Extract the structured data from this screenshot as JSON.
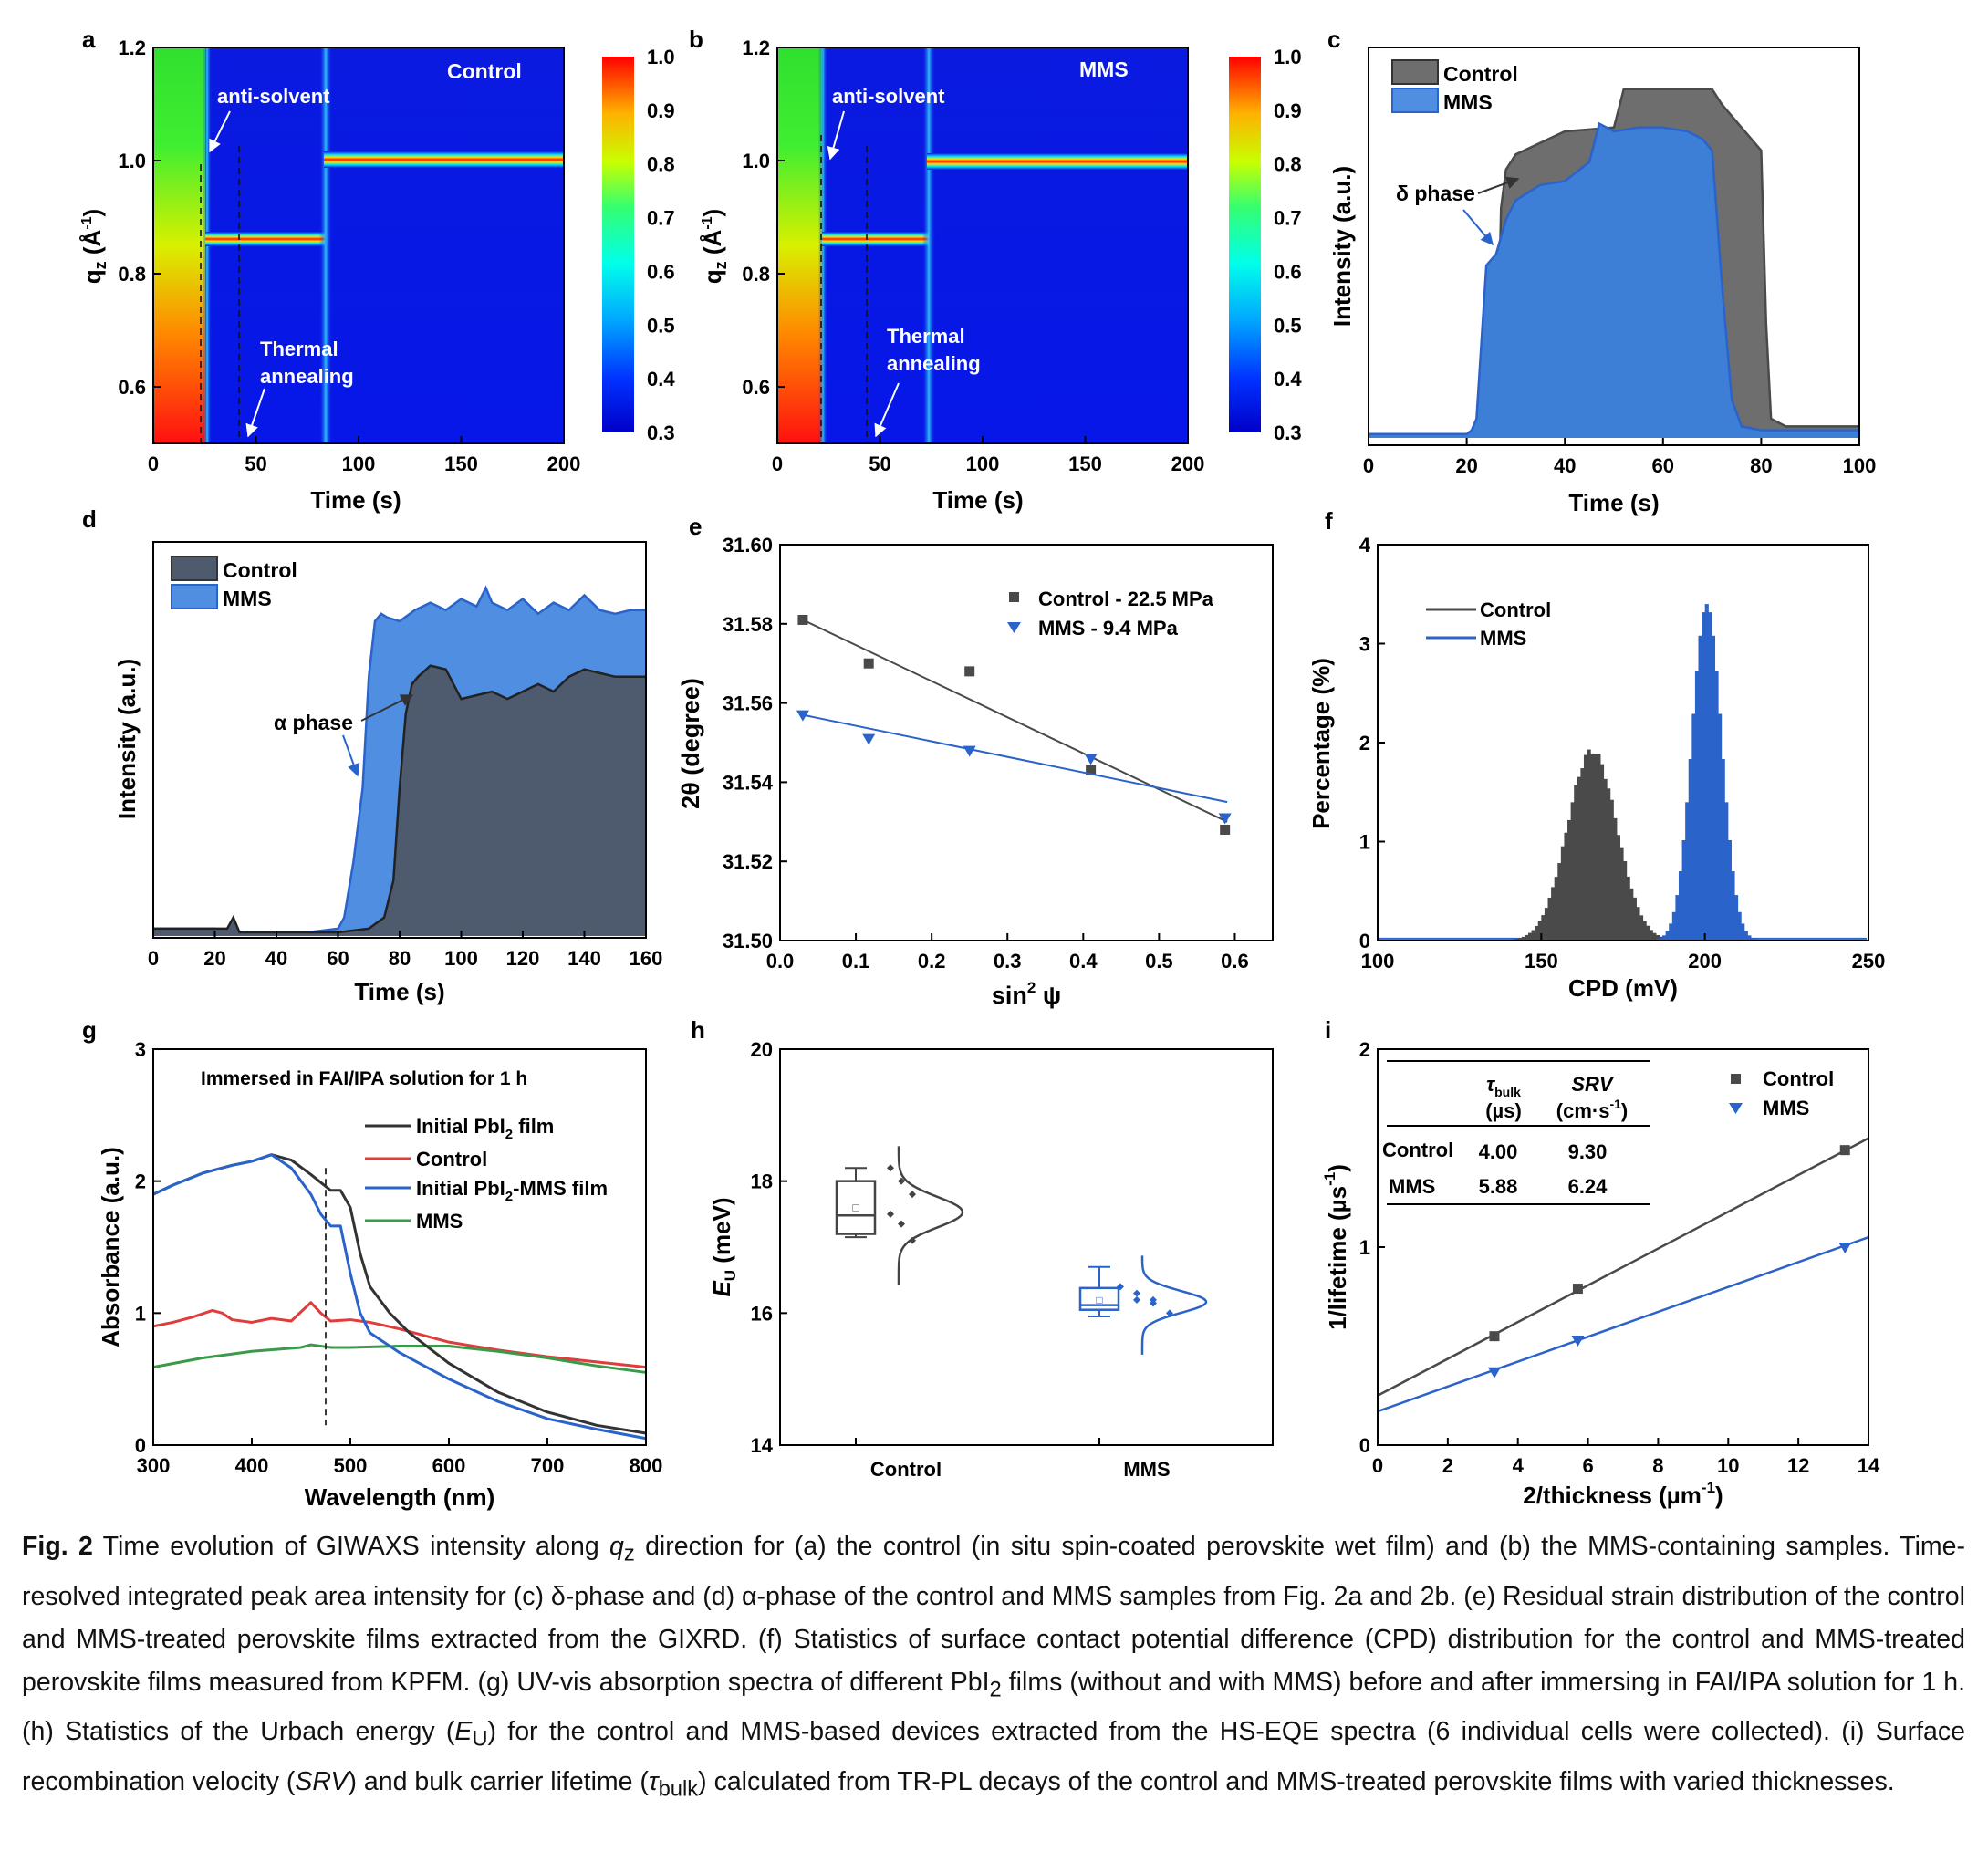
{
  "colors": {
    "control_dark": "#4a4a4a",
    "control_fill": "#6e6e6e",
    "control_fill_d": "#4e5a6e",
    "mms_blue": "#2a63c9",
    "mms_fill": "#4f8ee0",
    "mms_fill_c": "#3d7fd6",
    "red_line": "#e03c3c",
    "green_line": "#3a9a4a",
    "jet_low": "#0000ff",
    "jet_high": "#ff0000"
  },
  "panels": {
    "a": {
      "letter": "a",
      "label": "Control",
      "annotation_top": "anti-solvent",
      "annotation_bottom_1": "Thermal",
      "annotation_bottom_2": "annealing",
      "xlabel": "Time (s)",
      "ylabel_main": "q",
      "ylabel_sub": "z",
      "ylabel_unit": " (Å",
      "ylabel_sup": "-1",
      "ylabel_close": ")",
      "xticks": [
        "0",
        "50",
        "100",
        "150",
        "200"
      ],
      "yticks": [
        "0.6",
        "0.8",
        "1.0",
        "1.2"
      ],
      "cbar_ticks": [
        "1.0",
        "0.9",
        "0.8",
        "0.7",
        "0.6",
        "0.5",
        "0.4",
        "0.3"
      ]
    },
    "b": {
      "letter": "b",
      "label": "MMS",
      "annotation_top": "anti-solvent",
      "annotation_bottom_1": "Thermal",
      "annotation_bottom_2": "annealing",
      "xlabel": "Time (s)",
      "ylabel_main": "q",
      "ylabel_sub": "z",
      "ylabel_unit": " (Å",
      "ylabel_sup": "-1",
      "ylabel_close": ")",
      "xticks": [
        "0",
        "50",
        "100",
        "150",
        "200"
      ],
      "yticks": [
        "0.6",
        "0.8",
        "1.0",
        "1.2"
      ],
      "cbar_ticks": [
        "1.0",
        "0.9",
        "0.8",
        "0.7",
        "0.6",
        "0.5",
        "0.4",
        "0.3"
      ]
    },
    "c": {
      "letter": "c",
      "xlabel": "Time (s)",
      "ylabel": "Intensity (a.u.)",
      "legend": [
        "Control",
        "MMS"
      ],
      "annotation": "δ phase",
      "xticks": [
        "0",
        "20",
        "40",
        "60",
        "80",
        "100"
      ]
    },
    "d": {
      "letter": "d",
      "xlabel": "Time (s)",
      "ylabel": "Intensity (a.u.)",
      "legend": [
        "Control",
        "MMS"
      ],
      "annotation": "α phase",
      "xticks": [
        "0",
        "20",
        "40",
        "60",
        "80",
        "100",
        "120",
        "140",
        "160"
      ]
    },
    "e": {
      "letter": "e",
      "xlabel_main": "sin",
      "xlabel_sup": "2",
      "xlabel_end": " ψ",
      "ylabel": "2θ (degree)",
      "legend": [
        "Control - 22.5 MPa",
        "MMS - 9.4 MPa"
      ],
      "xticks": [
        "0.0",
        "0.1",
        "0.2",
        "0.3",
        "0.4",
        "0.5",
        "0.6"
      ],
      "yticks": [
        "31.50",
        "31.52",
        "31.54",
        "31.56",
        "31.58",
        "31.60"
      ]
    },
    "f": {
      "letter": "f",
      "xlabel": "CPD (mV)",
      "ylabel": "Percentage (%)",
      "legend": [
        "Control",
        "MMS"
      ],
      "xticks": [
        "100",
        "150",
        "200",
        "250"
      ],
      "yticks": [
        "0",
        "1",
        "2",
        "3",
        "4"
      ]
    },
    "g": {
      "letter": "g",
      "title": "Immersed in FAI/IPA solution for 1 h",
      "xlabel": "Wavelength (nm)",
      "ylabel": "Absorbance (a.u.)",
      "legend_1": "Initial PbI",
      "legend_1_sub": "2",
      "legend_1_end": " film",
      "legend_2": "Control",
      "legend_3": "Initial PbI",
      "legend_3_sub": "2",
      "legend_3_end": "-MMS film",
      "legend_4": "MMS",
      "xticks": [
        "300",
        "400",
        "500",
        "600",
        "700",
        "800"
      ],
      "yticks": [
        "0",
        "1",
        "2",
        "3"
      ]
    },
    "h": {
      "letter": "h",
      "ylabel_main": "E",
      "ylabel_sub": "U",
      "ylabel_end": " (meV)",
      "xticks": [
        "Control",
        "MMS"
      ],
      "yticks": [
        "14",
        "16",
        "18",
        "20"
      ]
    },
    "i": {
      "letter": "i",
      "xlabel_main": "2/thickness (µm",
      "xlabel_sup": "-1",
      "xlabel_end": ")",
      "ylabel_main": "1/lifetime (µs",
      "ylabel_sup": "-1",
      "ylabel_end": ")",
      "legend": [
        "Control",
        "MMS"
      ],
      "xticks": [
        "0",
        "2",
        "4",
        "6",
        "8",
        "10",
        "12",
        "14"
      ],
      "yticks": [
        "0",
        "1",
        "2"
      ],
      "table": {
        "col1_main": "τ",
        "col1_sub": "bulk",
        "col1_unit": "(µs)",
        "col2_head": "SRV",
        "col2_unit_main": "(cm·s",
        "col2_unit_sup": "-1",
        "col2_unit_end": ")",
        "rows": [
          {
            "name": "Control",
            "tau": "4.00",
            "srv": "9.30"
          },
          {
            "name": "MMS",
            "tau": "5.88",
            "srv": "6.24"
          }
        ]
      }
    }
  },
  "chart_data": [
    {
      "panel": "a",
      "type": "heatmap",
      "title": "Control",
      "xlabel": "Time (s)",
      "ylabel": "qz (Å-1)",
      "xlim": [
        0,
        200
      ],
      "ylim": [
        0.5,
        1.2
      ],
      "colorbar_range": [
        0.3,
        1.0
      ],
      "features": {
        "early_gradient_end_s": 25,
        "intermediate_peak_qz": 0.855,
        "intermediate_span_s": [
          25,
          83
        ],
        "perovskite_peak_qz": 1.0,
        "perovskite_start_s": 83,
        "antisolvent_time_s": 23,
        "annealing_time_s": 42
      }
    },
    {
      "panel": "b",
      "type": "heatmap",
      "title": "MMS",
      "xlabel": "Time (s)",
      "ylabel": "qz (Å-1)",
      "xlim": [
        0,
        200
      ],
      "ylim": [
        0.5,
        1.2
      ],
      "colorbar_range": [
        0.3,
        1.0
      ],
      "features": {
        "early_gradient_end_s": 22,
        "intermediate_peak_qz": 0.855,
        "intermediate_span_s": [
          22,
          73
        ],
        "perovskite_peak_qz": 1.0,
        "perovskite_start_s": 73,
        "antisolvent_time_s": 22,
        "annealing_time_s": 44
      }
    },
    {
      "panel": "c",
      "type": "area",
      "xlabel": "Time (s)",
      "ylabel": "Intensity (a.u.)",
      "xlim": [
        0,
        100
      ],
      "ylim": [
        0,
        1
      ],
      "series": [
        {
          "name": "Control",
          "x": [
            0,
            20,
            26,
            27,
            28,
            30,
            40,
            50,
            52,
            60,
            70,
            72,
            80,
            81,
            82,
            85,
            90,
            100
          ],
          "y": [
            0.01,
            0.01,
            0.02,
            0.6,
            0.7,
            0.74,
            0.8,
            0.81,
            0.91,
            0.91,
            0.91,
            0.87,
            0.75,
            0.3,
            0.05,
            0.03,
            0.03,
            0.03
          ]
        },
        {
          "name": "MMS",
          "x": [
            0,
            20,
            21,
            22,
            24,
            26,
            28,
            30,
            35,
            40,
            45,
            47,
            50,
            55,
            60,
            65,
            68,
            70,
            72,
            74,
            76,
            80,
            85,
            100
          ],
          "y": [
            0.01,
            0.01,
            0.02,
            0.05,
            0.45,
            0.48,
            0.57,
            0.62,
            0.66,
            0.67,
            0.72,
            0.82,
            0.8,
            0.81,
            0.81,
            0.8,
            0.78,
            0.75,
            0.4,
            0.1,
            0.03,
            0.02,
            0.02,
            0.02
          ]
        }
      ],
      "annotation": "δ phase"
    },
    {
      "panel": "d",
      "type": "area",
      "xlabel": "Time (s)",
      "ylabel": "Intensity (a.u.)",
      "xlim": [
        0,
        160
      ],
      "ylim": [
        0,
        1
      ],
      "series": [
        {
          "name": "Control",
          "x": [
            0,
            20,
            24,
            26,
            28,
            30,
            60,
            70,
            75,
            78,
            80,
            82,
            84,
            86,
            90,
            95,
            100,
            105,
            110,
            115,
            120,
            125,
            130,
            135,
            140,
            145,
            150,
            155,
            160
          ],
          "y": [
            0.02,
            0.02,
            0.02,
            0.05,
            0.01,
            0.01,
            0.01,
            0.02,
            0.05,
            0.15,
            0.4,
            0.6,
            0.68,
            0.7,
            0.73,
            0.72,
            0.64,
            0.65,
            0.66,
            0.64,
            0.66,
            0.68,
            0.66,
            0.7,
            0.72,
            0.71,
            0.7,
            0.7,
            0.7
          ]
        },
        {
          "name": "MMS",
          "x": [
            0,
            20,
            30,
            50,
            60,
            62,
            65,
            68,
            70,
            72,
            74,
            76,
            80,
            85,
            90,
            95,
            100,
            105,
            108,
            110,
            115,
            120,
            125,
            130,
            135,
            140,
            145,
            150,
            155,
            160
          ],
          "y": [
            0.02,
            0.02,
            0.01,
            0.01,
            0.02,
            0.05,
            0.2,
            0.4,
            0.7,
            0.85,
            0.87,
            0.86,
            0.85,
            0.88,
            0.9,
            0.88,
            0.91,
            0.89,
            0.94,
            0.9,
            0.88,
            0.91,
            0.87,
            0.9,
            0.88,
            0.92,
            0.88,
            0.87,
            0.88,
            0.88
          ]
        }
      ],
      "annotation": "α phase"
    },
    {
      "panel": "e",
      "type": "scatter",
      "xlabel": "sin2 ψ",
      "ylabel": "2θ (degree)",
      "xlim": [
        0.0,
        0.65
      ],
      "ylim": [
        31.5,
        31.6
      ],
      "series": [
        {
          "name": "Control - 22.5 MPa",
          "x": [
            0.03,
            0.117,
            0.25,
            0.41,
            0.587
          ],
          "y": [
            31.581,
            31.57,
            31.568,
            31.543,
            31.528
          ],
          "fit": [
            [
              0.03,
              31.581
            ],
            [
              0.59,
              31.53
            ]
          ]
        },
        {
          "name": "MMS - 9.4 MPa",
          "x": [
            0.03,
            0.117,
            0.25,
            0.41,
            0.587
          ],
          "y": [
            31.557,
            31.551,
            31.548,
            31.546,
            31.531
          ],
          "fit": [
            [
              0.03,
              31.557
            ],
            [
              0.59,
              31.535
            ]
          ]
        }
      ]
    },
    {
      "panel": "f",
      "type": "bar",
      "xlabel": "CPD (mV)",
      "ylabel": "Percentage (%)",
      "xlim": [
        100,
        250
      ],
      "ylim": [
        0,
        4
      ],
      "series": [
        {
          "name": "Control",
          "center": 165,
          "peak": 1.92,
          "sigma": 7.5
        },
        {
          "name": "MMS",
          "center": 200,
          "peak": 3.4,
          "sigma": 4.5
        }
      ]
    },
    {
      "panel": "g",
      "type": "line",
      "title": "Immersed in FAI/IPA solution for 1 h",
      "xlabel": "Wavelength (nm)",
      "ylabel": "Absorbance (a.u.)",
      "xlim": [
        300,
        800
      ],
      "ylim": [
        0,
        3
      ],
      "series": [
        {
          "name": "Initial PbI2 film",
          "x": [
            300,
            320,
            350,
            380,
            400,
            420,
            440,
            460,
            480,
            490,
            500,
            510,
            520,
            540,
            560,
            600,
            650,
            700,
            750,
            800
          ],
          "y": [
            1.9,
            1.97,
            2.06,
            2.12,
            2.15,
            2.2,
            2.16,
            2.05,
            1.93,
            1.93,
            1.8,
            1.45,
            1.2,
            1.0,
            0.85,
            0.62,
            0.4,
            0.25,
            0.15,
            0.09
          ]
        },
        {
          "name": "Control",
          "x": [
            300,
            320,
            340,
            360,
            370,
            380,
            400,
            420,
            440,
            460,
            470,
            480,
            500,
            520,
            550,
            600,
            650,
            700,
            750,
            800
          ],
          "y": [
            0.9,
            0.93,
            0.97,
            1.02,
            1.0,
            0.95,
            0.93,
            0.96,
            0.94,
            1.08,
            1.0,
            0.94,
            0.95,
            0.93,
            0.88,
            0.78,
            0.72,
            0.67,
            0.63,
            0.59
          ]
        },
        {
          "name": "Initial PbI2-MMS film",
          "x": [
            300,
            320,
            350,
            380,
            400,
            420,
            440,
            460,
            470,
            480,
            490,
            500,
            510,
            520,
            550,
            600,
            650,
            700,
            750,
            800
          ],
          "y": [
            1.9,
            1.97,
            2.06,
            2.12,
            2.15,
            2.2,
            2.1,
            1.9,
            1.75,
            1.66,
            1.66,
            1.3,
            1.0,
            0.85,
            0.7,
            0.5,
            0.33,
            0.2,
            0.12,
            0.05
          ]
        },
        {
          "name": "MMS",
          "x": [
            300,
            350,
            400,
            450,
            460,
            480,
            500,
            550,
            600,
            650,
            700,
            750,
            800
          ],
          "y": [
            0.59,
            0.66,
            0.71,
            0.74,
            0.76,
            0.74,
            0.74,
            0.75,
            0.75,
            0.71,
            0.66,
            0.6,
            0.55
          ]
        }
      ],
      "reference_line_x": 475
    },
    {
      "panel": "h",
      "type": "box",
      "xlabel": "",
      "ylabel": "EU (meV)",
      "ylim": [
        14,
        20
      ],
      "categories": [
        "Control",
        "MMS"
      ],
      "series": [
        {
          "name": "Control",
          "whisker_min": 17.15,
          "q1": 17.2,
          "median": 17.48,
          "mean": 17.6,
          "q3": 18.0,
          "whisker_max": 18.2,
          "points": [
            18.2,
            18.0,
            17.8,
            17.5,
            17.35,
            17.1
          ]
        },
        {
          "name": "MMS",
          "whisker_min": 15.95,
          "q1": 16.05,
          "median": 16.12,
          "mean": 16.2,
          "q3": 16.38,
          "whisker_max": 16.7,
          "points": [
            16.4,
            16.3,
            16.2,
            16.2,
            16.15,
            16.0
          ]
        }
      ]
    },
    {
      "panel": "i",
      "type": "scatter",
      "xlabel": "2/thickness (µm-1)",
      "ylabel": "1/lifetime (µs-1)",
      "xlim": [
        0,
        14
      ],
      "ylim": [
        0,
        2
      ],
      "series": [
        {
          "name": "Control",
          "x": [
            3.33,
            5.71,
            13.33
          ],
          "y": [
            0.55,
            0.79,
            1.49
          ],
          "fit": [
            [
              0,
              0.25
            ],
            [
              14,
              1.55
            ]
          ]
        },
        {
          "name": "MMS",
          "x": [
            3.33,
            5.71,
            13.33
          ],
          "y": [
            0.37,
            0.53,
            1.0
          ],
          "fit": [
            [
              0,
              0.17
            ],
            [
              14,
              1.05
            ]
          ]
        }
      ]
    }
  ],
  "caption": {
    "fig_label": "Fig. 2",
    "s1": " Time evolution of GIWAXS intensity along ",
    "s1_q": "q",
    "s1_qsub": "z",
    "s2": " direction for (a) the control (in situ spin-coated perovskite wet film) and (b) the MMS-containing samples. Time-resolved integrated peak area intensity for (c) δ-phase and (d) α-phase of the control and MMS samples from Fig. 2a and 2b. (e) Residual strain distribution of the control and MMS-treated perovskite films extracted from the GIXRD. (f) Statistics of surface contact potential difference (CPD) distribution for the control and MMS-treated perovskite films measured from KPFM. (g) UV-vis absorption spectra of different PbI",
    "s2_sub": "2",
    "s3": " films (without and with MMS) before and after immersing in FAI/IPA solution for 1 h. (h) Statistics of the Urbach energy (",
    "s3_e": "E",
    "s3_esub": "U",
    "s4": ") for the control and MMS-based devices extracted from the HS-EQE spectra (6 individual cells were collected). (i) Surface recombination velocity (",
    "s4_srv": "SRV",
    "s5": ") and bulk carrier lifetime (",
    "s5_tau": "τ",
    "s5_tausub": "bulk",
    "s6": ") calculated from TR-PL decays of the control and MMS-treated perovskite films with varied thicknesses."
  }
}
